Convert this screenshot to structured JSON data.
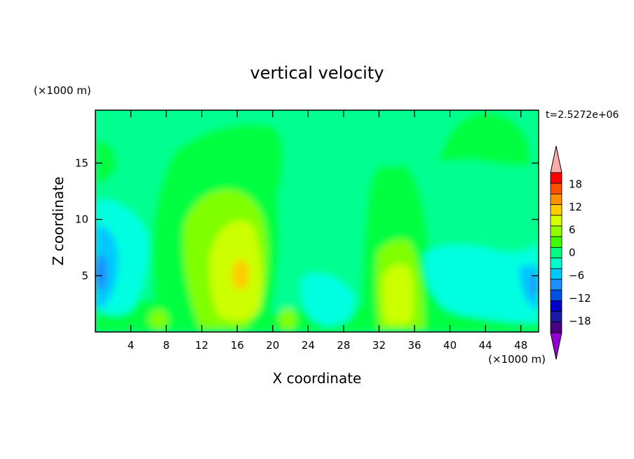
{
  "chart_data": {
    "type": "heatmap",
    "title": "vertical velocity",
    "xlabel": "X coordinate",
    "ylabel": "Z coordinate",
    "x_unit": "(×1000 m)",
    "y_unit": "(×1000 m)",
    "time_label": "t=2.5272e+06",
    "xlim": [
      0,
      50
    ],
    "ylim": [
      0,
      19.7
    ],
    "x_ticks": [
      4,
      8,
      12,
      16,
      20,
      24,
      28,
      32,
      36,
      40,
      44,
      48
    ],
    "y_ticks": [
      5,
      10,
      15
    ],
    "colorbar": {
      "labels": [
        18,
        12,
        6,
        0,
        -6,
        -12,
        -18
      ],
      "levels": [
        -21,
        -18,
        -15,
        -12,
        -9,
        -6,
        -3,
        0,
        3,
        6,
        9,
        12,
        15,
        18,
        21
      ],
      "colors": [
        "#9400d3",
        "#4b0082",
        "#1a1aa0",
        "#0000cd",
        "#0050e6",
        "#1e90ff",
        "#00c8ff",
        "#00ffc8",
        "#00ff80",
        "#40ff00",
        "#90ff00",
        "#d8ff00",
        "#ffcc00",
        "#ff9000",
        "#ff5000",
        "#ff0000",
        "#ffaaaa"
      ]
    },
    "colors": {
      "background": "#00ff90",
      "weak_up": "#00ff40",
      "moderate_up": "#80ff00",
      "strong_up": "#ccff00",
      "max_up": "#ffcc00",
      "weak_down": "#00ffe0",
      "moderate_down": "#00c8ff",
      "strong_down": "#1e90ff"
    }
  }
}
